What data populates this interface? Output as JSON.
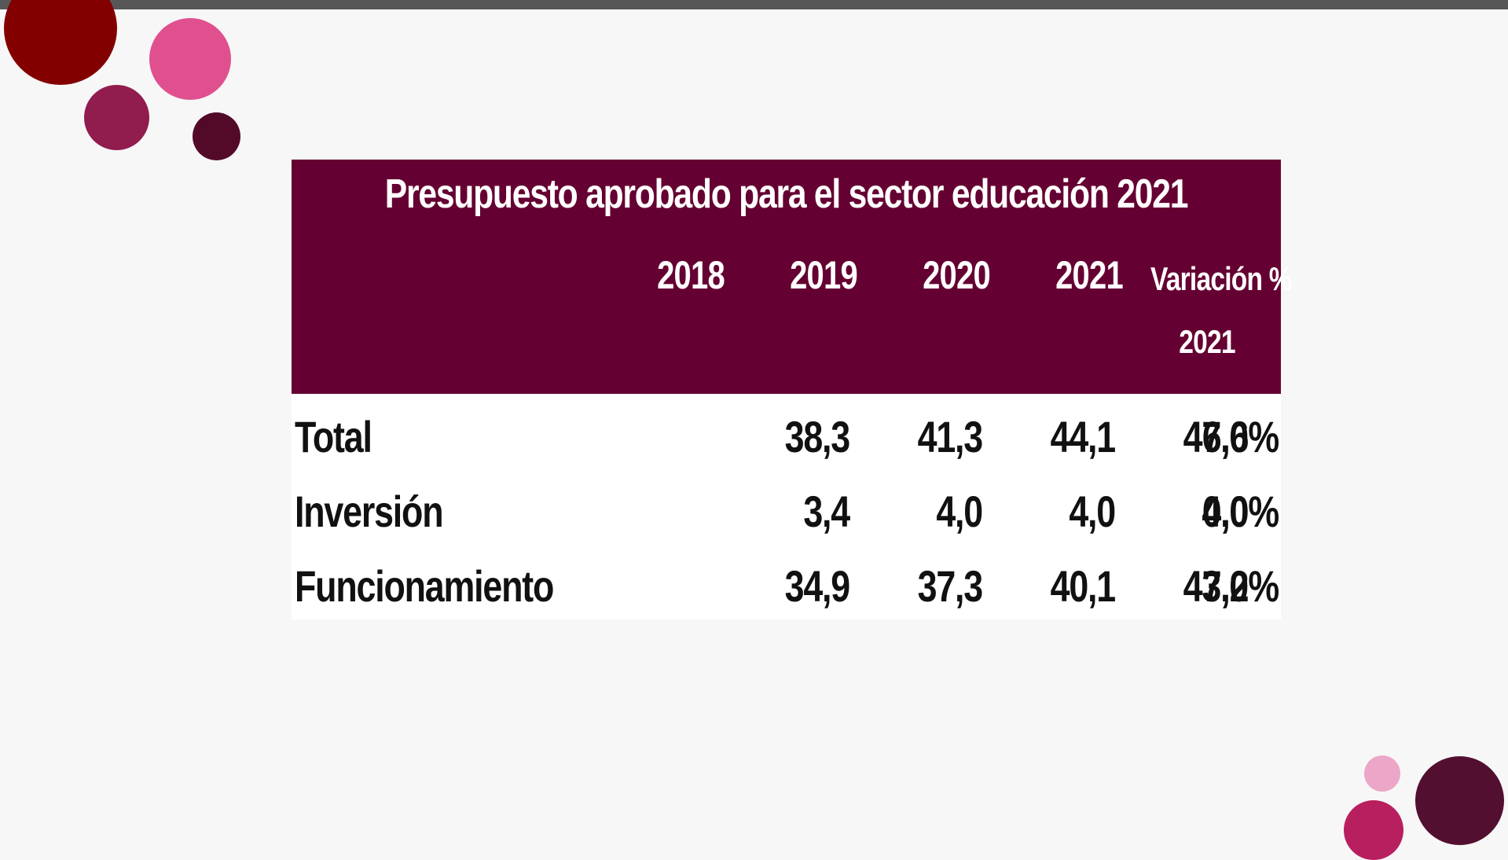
{
  "colors": {
    "top_bar": "#575757",
    "header_bg": "#650032",
    "circle_dark_red": "#830000",
    "circle_pink": "#e0508f",
    "circle_magenta": "#911c4e",
    "circle_deep_plum": "#520a28",
    "circle_light_pink": "#eca6c8",
    "circle_raspberry": "#b81f5f",
    "circle_plum": "#530f30"
  },
  "table": {
    "title": "Presupuesto aprobado para el sector educación 2021",
    "columns": [
      "2018",
      "2019",
      "2020",
      "2021"
    ],
    "variation_header_line1": "Variación %",
    "variation_header_line2": "2021",
    "rows": [
      {
        "label": "Total",
        "values": [
          "38,3",
          "41,3",
          "44,1",
          "47,0"
        ],
        "variation": "6,6%"
      },
      {
        "label": "Inversión",
        "values": [
          "3,4",
          "4,0",
          "4,0",
          "4,0"
        ],
        "variation": "0,0%"
      },
      {
        "label": "Funcionamiento",
        "values": [
          "34,9",
          "37,3",
          "40,1",
          "43,0"
        ],
        "variation": "7,2%"
      }
    ]
  }
}
